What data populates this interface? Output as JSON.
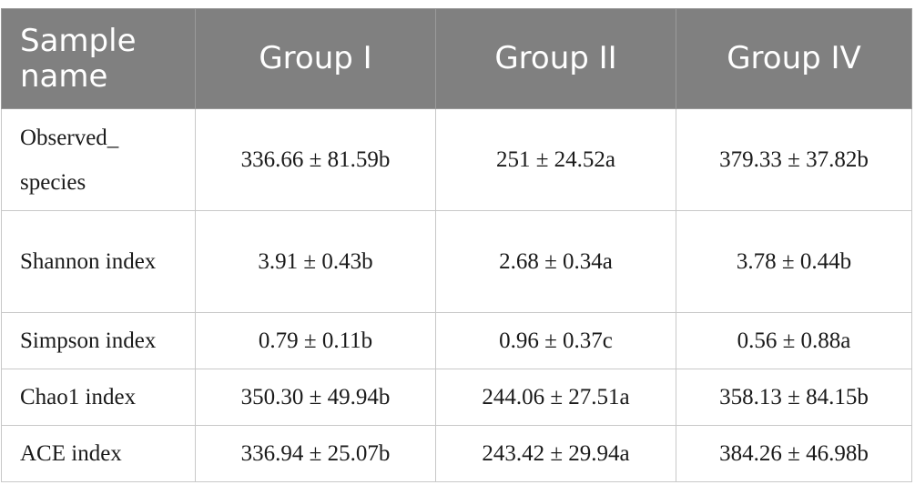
{
  "table": {
    "headers": [
      "Sample name",
      "Group I",
      "Group II",
      "Group IV"
    ],
    "rows": [
      {
        "name": "Observed_ species",
        "values": [
          "336.66 ± 81.59b",
          "251 ± 24.52a",
          "379.33 ± 37.82b"
        ]
      },
      {
        "name": "Shannon index",
        "values": [
          "3.91 ± 0.43b",
          "2.68 ± 0.34a",
          "3.78 ± 0.44b"
        ]
      },
      {
        "name": "Simpson index",
        "values": [
          "0.79 ± 0.11b",
          "0.96 ± 0.37c",
          "0.56 ± 0.88a"
        ]
      },
      {
        "name": "Chao1 index",
        "values": [
          "350.30 ± 49.94b",
          "244.06 ± 27.51a",
          "358.13 ± 84.15b"
        ]
      },
      {
        "name": "ACE index",
        "values": [
          "336.94 ± 25.07b",
          "243.42 ± 29.94a",
          "384.26 ± 46.98b"
        ]
      }
    ]
  }
}
